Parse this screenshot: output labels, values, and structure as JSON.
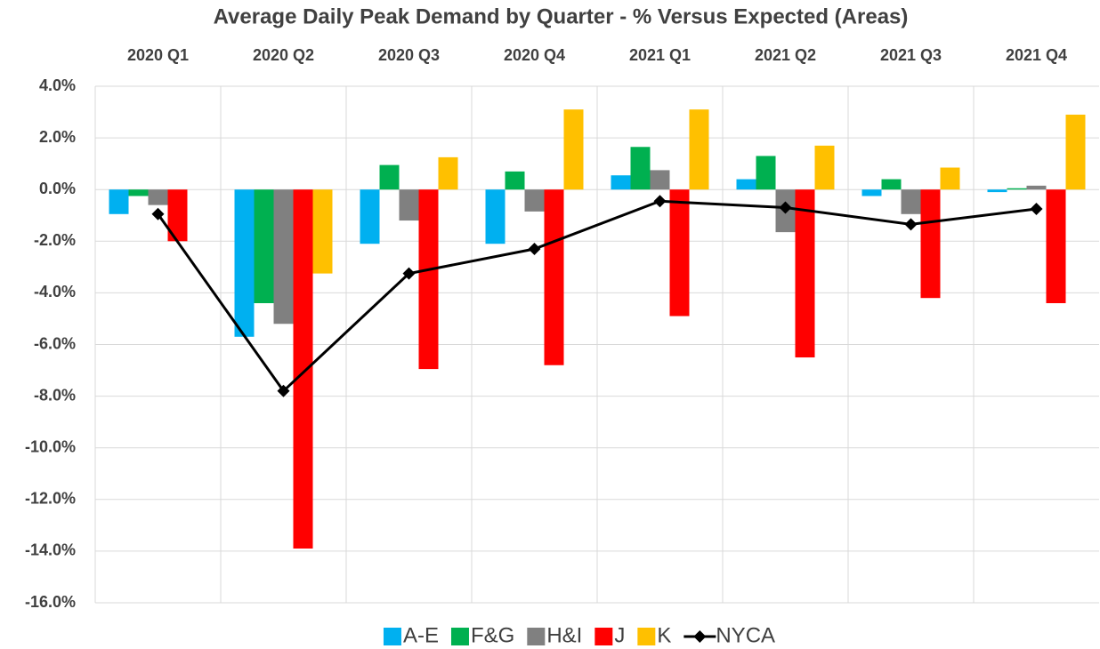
{
  "chart_data": {
    "type": "bar",
    "title": "Average Daily Peak Demand by Quarter - % Versus Expected (Areas)",
    "categories": [
      "2020 Q1",
      "2020 Q2",
      "2020 Q3",
      "2020 Q4",
      "2021 Q1",
      "2021 Q2",
      "2021 Q3",
      "2021 Q4"
    ],
    "category_axis_position": "top",
    "series": [
      {
        "name": "A-E",
        "color": "#00b0f0",
        "values": [
          -0.95,
          -5.7,
          -2.1,
          -2.1,
          0.55,
          0.4,
          -0.25,
          -0.1
        ]
      },
      {
        "name": "F&G",
        "color": "#00b050",
        "values": [
          -0.25,
          -4.4,
          0.95,
          0.7,
          1.65,
          1.3,
          0.4,
          0.05
        ]
      },
      {
        "name": "H&I",
        "color": "#808080",
        "values": [
          -0.6,
          -5.2,
          -1.2,
          -0.85,
          0.75,
          -1.65,
          -0.95,
          0.15
        ]
      },
      {
        "name": "J",
        "color": "#ff0000",
        "values": [
          -2.0,
          -13.9,
          -6.95,
          -6.8,
          -4.9,
          -6.5,
          -4.2,
          -4.4
        ]
      },
      {
        "name": "K",
        "color": "#ffc000",
        "values": [
          0,
          -3.25,
          1.25,
          3.1,
          3.1,
          1.7,
          0.85,
          2.9
        ]
      },
      {
        "name": "NYCA",
        "color": "#000000",
        "type": "line",
        "values": [
          -0.95,
          -7.8,
          -3.25,
          -2.3,
          -0.45,
          -0.7,
          -1.35,
          -0.75
        ]
      }
    ],
    "ylim": [
      -16,
      4
    ],
    "yticks": [
      {
        "value": 4,
        "label": "4.0%"
      },
      {
        "value": 2,
        "label": "2.0%"
      },
      {
        "value": 0,
        "label": "0.0%"
      },
      {
        "value": -2,
        "label": "-2.0%"
      },
      {
        "value": -4,
        "label": "-4.0%"
      },
      {
        "value": -6,
        "label": "-6.0%"
      },
      {
        "value": -8,
        "label": "-8.0%"
      },
      {
        "value": -10,
        "label": "-10.0%"
      },
      {
        "value": -12,
        "label": "-12.0%"
      },
      {
        "value": -14,
        "label": "-14.0%"
      },
      {
        "value": -16,
        "label": "-16.0%"
      }
    ],
    "grid": true,
    "legend": "bottom"
  }
}
